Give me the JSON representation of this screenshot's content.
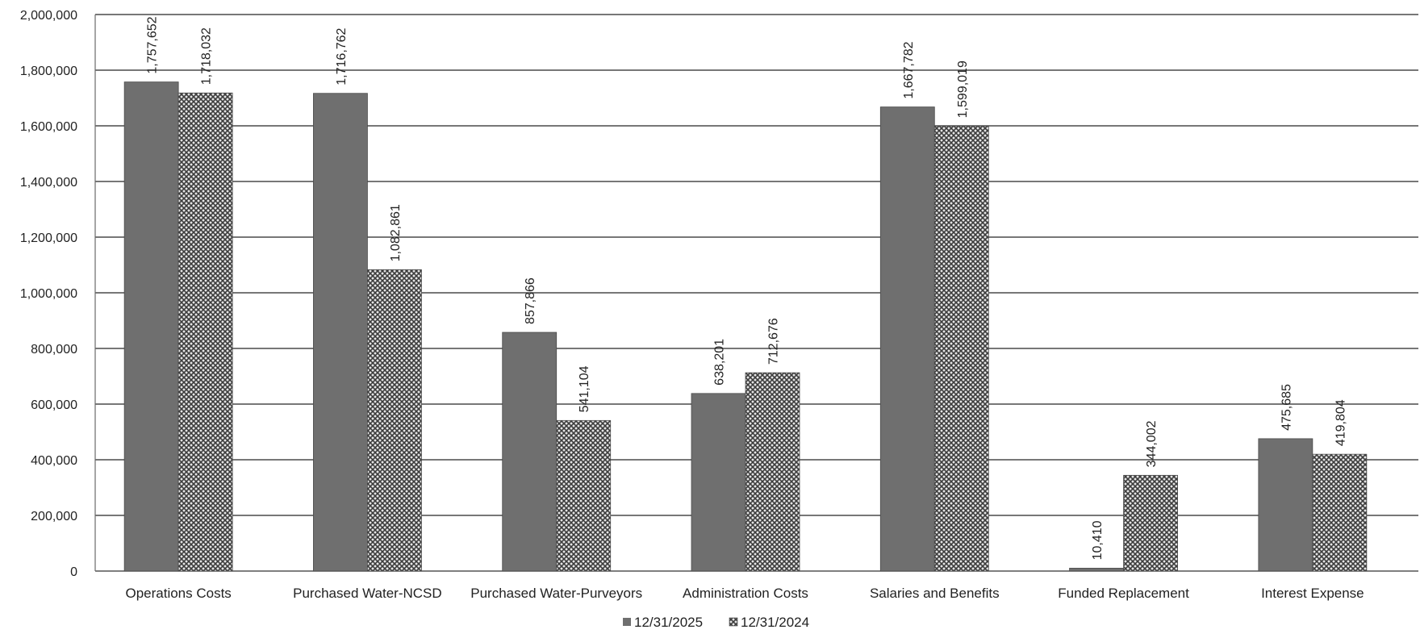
{
  "chart_data": {
    "type": "bar",
    "title": "",
    "xlabel": "",
    "ylabel": "",
    "ylim": [
      0,
      2000000
    ],
    "yticks": [
      0,
      200000,
      400000,
      600000,
      800000,
      1000000,
      1200000,
      1400000,
      1600000,
      1800000,
      2000000
    ],
    "ytick_labels": [
      "0",
      "200,000",
      "400,000",
      "600,000",
      "800,000",
      "1,000,000",
      "1,200,000",
      "1,400,000",
      "1,600,000",
      "1,800,000",
      "2,000,000"
    ],
    "grid": true,
    "legend_position": "bottom-center",
    "categories": [
      "Operations Costs",
      "Purchased Water-NCSD",
      "Purchased Water-Purveyors",
      "Administration Costs",
      "Salaries and Benefits",
      "Funded Replacement",
      "Interest Expense"
    ],
    "series": [
      {
        "name": "12/31/2025",
        "color": "#6f6f6f",
        "pattern": "solid",
        "values": [
          1757652,
          1716762,
          857866,
          638201,
          1667782,
          10410,
          475685
        ],
        "labels": [
          "1,757,652",
          "1,716,762",
          "857,866",
          "638,201",
          "1,667,782",
          "10,410",
          "475,685"
        ]
      },
      {
        "name": "12/31/2024",
        "color": "#555555",
        "pattern": "crosshatch",
        "values": [
          1718032,
          1082861,
          541104,
          712676,
          1599019,
          344002,
          419804
        ],
        "labels": [
          "1,718,032",
          "1,082,861",
          "541,104",
          "712,676",
          "1,599,019",
          "344,002",
          "419,804"
        ]
      }
    ]
  }
}
